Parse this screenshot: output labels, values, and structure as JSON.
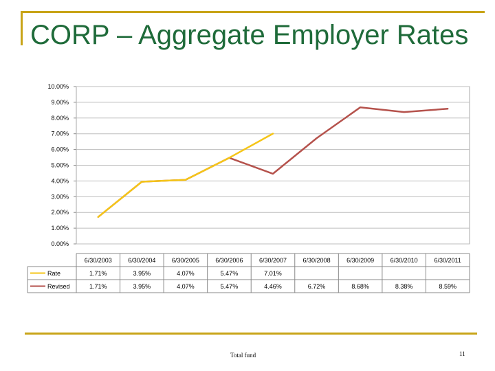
{
  "slide": {
    "title": "CORP – Aggregate Employer Rates",
    "footer": "Total fund",
    "page_number": "11"
  },
  "colors": {
    "accent_line": "#c8a418",
    "title": "#1f6b3a",
    "rate": "#f5c518",
    "revised": "#b5524c"
  },
  "chart_data": {
    "type": "line",
    "categories": [
      "6/30/2003",
      "6/30/2004",
      "6/30/2005",
      "6/30/2006",
      "6/30/2007",
      "6/30/2008",
      "6/30/2009",
      "6/30/2010",
      "6/30/2011"
    ],
    "yticks": [
      "0.00%",
      "1.00%",
      "2.00%",
      "3.00%",
      "4.00%",
      "5.00%",
      "6.00%",
      "7.00%",
      "8.00%",
      "9.00%",
      "10.00%"
    ],
    "ylim": [
      0,
      10
    ],
    "grid": true,
    "series": [
      {
        "name": "Rate",
        "color": "#f5c518",
        "values": [
          1.71,
          3.95,
          4.07,
          5.47,
          7.01,
          null,
          null,
          null,
          null
        ],
        "labels": [
          "1.71%",
          "3.95%",
          "4.07%",
          "5.47%",
          "7.01%",
          "",
          "",
          "",
          ""
        ]
      },
      {
        "name": "Revised",
        "color": "#b5524c",
        "values": [
          1.71,
          3.95,
          4.07,
          5.47,
          4.46,
          6.72,
          8.68,
          8.38,
          8.59
        ],
        "labels": [
          "1.71%",
          "3.95%",
          "4.07%",
          "5.47%",
          "4.46%",
          "6.72%",
          "8.68%",
          "8.38%",
          "8.59%"
        ]
      }
    ]
  }
}
